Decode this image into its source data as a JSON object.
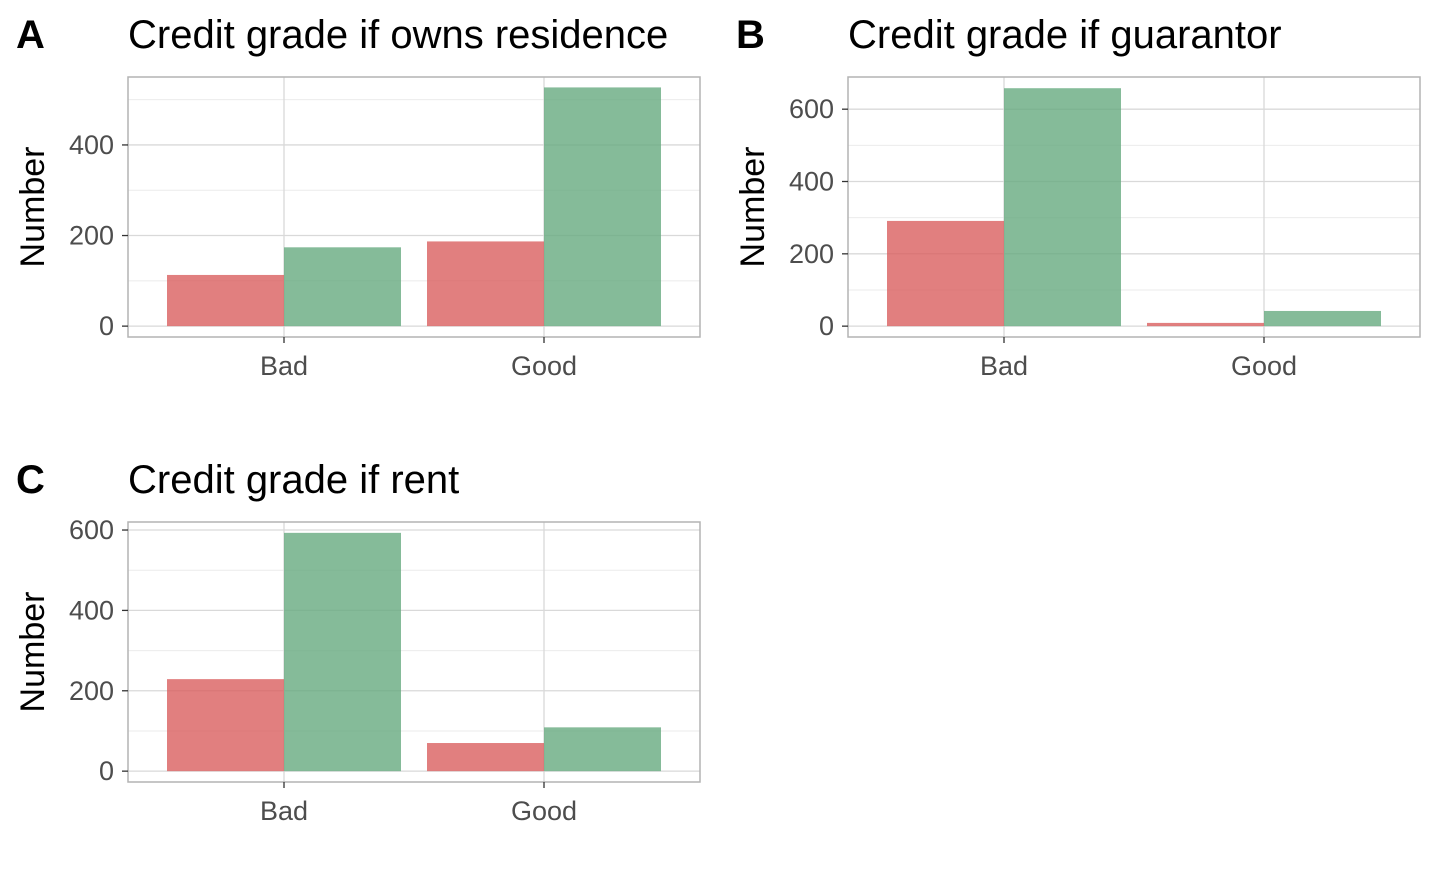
{
  "chart_data": [
    {
      "type": "bar",
      "tag": "A",
      "title": "Credit grade if owns residence",
      "xlabel": "",
      "ylabel": "Number",
      "categories": [
        "Bad",
        "Good"
      ],
      "series": [
        {
          "color": "#d95f5f",
          "values": [
            113,
            187
          ]
        },
        {
          "color": "#66aa7f",
          "values": [
            174,
            527
          ]
        }
      ],
      "yticks": [
        0,
        200,
        400
      ],
      "ylim": [
        -24,
        550
      ],
      "grid": true
    },
    {
      "type": "bar",
      "tag": "B",
      "title": "Credit grade if guarantor",
      "xlabel": "",
      "ylabel": "Number",
      "categories": [
        "Bad",
        "Good"
      ],
      "series": [
        {
          "color": "#d95f5f",
          "values": [
            291,
            9
          ]
        },
        {
          "color": "#66aa7f",
          "values": [
            658,
            42
          ]
        }
      ],
      "yticks": [
        0,
        200,
        400,
        600
      ],
      "ylim": [
        -30,
        689
      ],
      "grid": true
    },
    {
      "type": "bar",
      "tag": "C",
      "title": "Credit grade if rent",
      "xlabel": "",
      "ylabel": "Number",
      "categories": [
        "Bad",
        "Good"
      ],
      "series": [
        {
          "color": "#d95f5f",
          "values": [
            229,
            70
          ]
        },
        {
          "color": "#66aa7f",
          "values": [
            593,
            109
          ]
        }
      ],
      "yticks": [
        0,
        200,
        400,
        600
      ],
      "ylim": [
        -27,
        620
      ],
      "grid": true
    }
  ]
}
